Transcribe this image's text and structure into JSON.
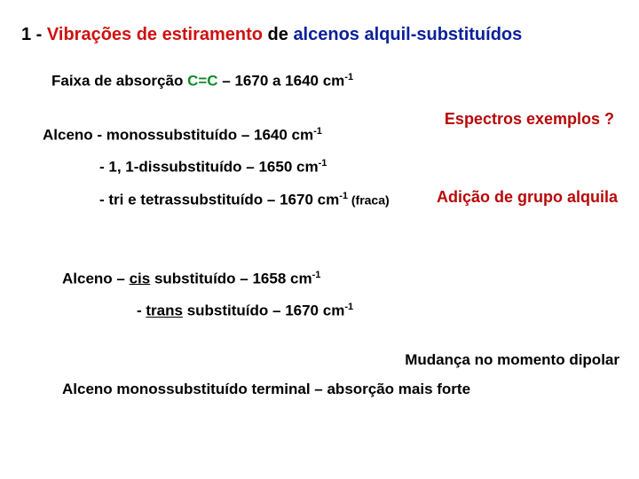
{
  "title": {
    "num": "1 - ",
    "red": "Vibrações de estiramento",
    "mid": " de ",
    "blue": "alcenos alquil-substituídos"
  },
  "abs_band": {
    "label": "Faixa de absorção ",
    "grn": "C=C",
    "rest": "  – 1670 a 1640 cm",
    "sup": "-1"
  },
  "espectros": "Espectros exemplos ?",
  "mono": {
    "a": "Alceno - monossubstituído – 1640 cm",
    "sup": "-1"
  },
  "diss": {
    "a": "- 1, 1-dissubstituído –  1650 cm",
    "sup": "-1"
  },
  "adicao": "Adição de grupo alquila",
  "tri": {
    "a": "- tri e tetrassubstituído – 1670 cm",
    "sup": "-1",
    "note": " (fraca)"
  },
  "cis": {
    "a": "Alceno – ",
    "u": "cis",
    "b": " substituído – 1658 cm",
    "sup": "-1"
  },
  "trans": {
    "a": "- ",
    "u": "trans",
    "b": " substituído – 1670 cm",
    "sup": "-1"
  },
  "mudanca": "Mudança no momento dipolar",
  "terminal": "Alceno monossubstituído terminal – absorção mais forte",
  "colors": {
    "red": "#d01010",
    "blue": "#0a1f9b",
    "green": "#128a2b",
    "annot_red": "#b80808",
    "black": "#000000",
    "background": "#ffffff"
  },
  "typography": {
    "family": "Arial",
    "title_pt": 20,
    "body_pt": 17,
    "annot_pt": 18,
    "sup_pt": 11,
    "small_pt": 14,
    "weight": "bold"
  }
}
